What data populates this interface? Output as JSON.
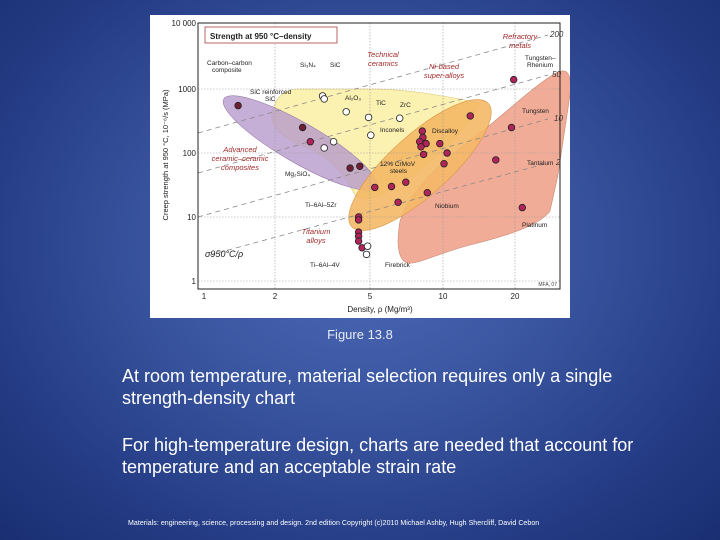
{
  "slide": {
    "caption": "Figure 13.8",
    "paragraphs": [
      "At room temperature, material selection requires only a single strength-density chart",
      "For high-temperature design, charts are needed that account for temperature and an acceptable strain rate"
    ],
    "credit": "Materials: engineering, science, processing and design. 2nd edition Copyright (c)2010 Michael Ashby, Hugh Shercliff, David Cebon",
    "colors": {
      "background": "#2c4590",
      "text": "#ffffff"
    }
  },
  "chart_data": {
    "type": "scatter",
    "title": "Strength at 950 °C–density",
    "xlabel": "Density, ρ (Mg/m³)",
    "ylabel": "Creep strength at 950 °C, 10⁻⁶/s (MPa)",
    "xscale": "log",
    "yscale": "log",
    "xlim": [
      0.8,
      33
    ],
    "ylim": [
      0.8,
      10000
    ],
    "x_ticks": [
      "1",
      "2",
      "5",
      "10",
      "20"
    ],
    "y_ticks": [
      "1",
      "10",
      "100",
      "1000",
      "10 000"
    ],
    "grid": true,
    "guide_lines": {
      "label": "σ950°C/ρ",
      "values": [
        "200",
        "50",
        "10",
        "2"
      ]
    },
    "corner_mark": "MFA, 07",
    "envelopes": [
      {
        "name": "Advanced ceramic–ceramic composites",
        "color": "#b89bcc"
      },
      {
        "name": "Technical ceramics",
        "color": "#fbf0a8"
      },
      {
        "name": "Ni-based super-alloys",
        "color": "#f4b866"
      },
      {
        "name": "Refractory metals",
        "color": "#ee9e86"
      },
      {
        "name": "Titanium alloys",
        "color": "#ee9e86"
      }
    ],
    "points": [
      {
        "label": "Carbon–carbon composite",
        "x": 1.4,
        "y": 550,
        "style": "dark"
      },
      {
        "label": "SiC reinforced SiC",
        "x": 2.6,
        "y": 250,
        "style": "dark"
      },
      {
        "label": "Mg2SiO4",
        "x": 2.8,
        "y": 150,
        "style": "filled"
      },
      {
        "label": "",
        "x": 4.1,
        "y": 58,
        "style": "dark"
      },
      {
        "label": "",
        "x": 4.5,
        "y": 62,
        "style": "dark"
      },
      {
        "label": "Si3N4",
        "x": 3.15,
        "y": 780,
        "style": "open"
      },
      {
        "label": "SiC",
        "x": 3.2,
        "y": 700,
        "style": "open"
      },
      {
        "label": "Al2O3",
        "x": 3.95,
        "y": 440,
        "style": "open"
      },
      {
        "label": "TiC",
        "x": 4.9,
        "y": 360,
        "style": "open"
      },
      {
        "label": "ZrC",
        "x": 6.6,
        "y": 350,
        "style": "open"
      },
      {
        "label": "",
        "x": 5.0,
        "y": 190,
        "style": "open"
      },
      {
        "label": "",
        "x": 3.5,
        "y": 150,
        "style": "open"
      },
      {
        "label": "",
        "x": 3.2,
        "y": 120,
        "style": "open"
      },
      {
        "label": "Inconels",
        "x": 8.2,
        "y": 220,
        "style": "filled"
      },
      {
        "label": "",
        "x": 8.25,
        "y": 175,
        "style": "filled"
      },
      {
        "label": "Discalloy",
        "x": 8.5,
        "y": 140,
        "style": "filled"
      },
      {
        "label": "",
        "x": 8.0,
        "y": 150,
        "style": "filled"
      },
      {
        "label": "",
        "x": 8.1,
        "y": 125,
        "style": "filled"
      },
      {
        "label": "12% CrMoV steels",
        "x": 8.3,
        "y": 95,
        "style": "filled"
      },
      {
        "label": "",
        "x": 9.7,
        "y": 140,
        "style": "filled"
      },
      {
        "label": "",
        "x": 10.4,
        "y": 100,
        "style": "filled"
      },
      {
        "label": "",
        "x": 10.1,
        "y": 68,
        "style": "filled"
      },
      {
        "label": "",
        "x": 13.0,
        "y": 380,
        "style": "filled"
      },
      {
        "label": "",
        "x": 7.0,
        "y": 35,
        "style": "filled"
      },
      {
        "label": "",
        "x": 6.1,
        "y": 30,
        "style": "filled"
      },
      {
        "label": "",
        "x": 5.2,
        "y": 29,
        "style": "filled"
      },
      {
        "label": "",
        "x": 6.5,
        "y": 17,
        "style": "filled"
      },
      {
        "label": "Niobium",
        "x": 8.6,
        "y": 24,
        "style": "filled"
      },
      {
        "label": "Tungsten–Rhenium",
        "x": 19.7,
        "y": 1400,
        "style": "filled"
      },
      {
        "label": "Tungsten",
        "x": 19.3,
        "y": 250,
        "style": "filled"
      },
      {
        "label": "Tantalum",
        "x": 16.6,
        "y": 78,
        "style": "filled"
      },
      {
        "label": "Platinum",
        "x": 21.4,
        "y": 14,
        "style": "filled"
      },
      {
        "label": "Ti-6Al-5Zr",
        "x": 4.45,
        "y": 10,
        "style": "filled"
      },
      {
        "label": "",
        "x": 4.45,
        "y": 9,
        "style": "filled"
      },
      {
        "label": "",
        "x": 4.45,
        "y": 5.8,
        "style": "filled"
      },
      {
        "label": "",
        "x": 4.45,
        "y": 5.0,
        "style": "filled"
      },
      {
        "label": "Ti-6Al-4V",
        "x": 4.45,
        "y": 4.2,
        "style": "filled"
      },
      {
        "label": "",
        "x": 4.6,
        "y": 3.3,
        "style": "filled"
      },
      {
        "label": "Firebrick",
        "x": 4.85,
        "y": 3.5,
        "style": "open"
      },
      {
        "label": "",
        "x": 4.8,
        "y": 2.6,
        "style": "open"
      }
    ],
    "annotations": [
      "Technical ceramics",
      "Refractory metals",
      "Ni-based super-alloys",
      "Advanced ceramic–ceramic composites",
      "Titanium alloys"
    ]
  }
}
